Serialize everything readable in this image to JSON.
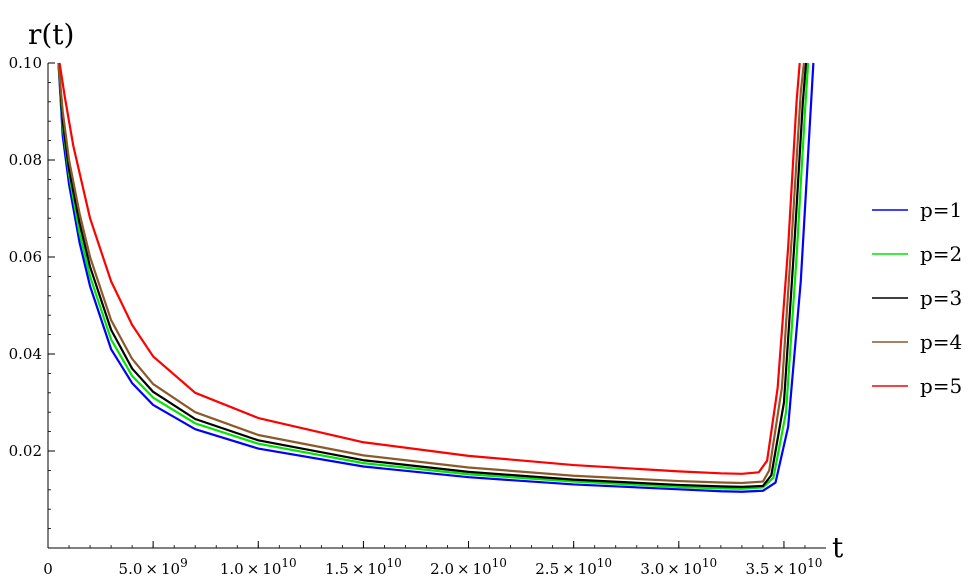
{
  "chart_data": {
    "type": "line",
    "title": "",
    "xlabel": "t",
    "ylabel": "r(t)",
    "xlim": [
      0,
      37000000000
    ],
    "ylim": [
      0,
      0.1
    ],
    "grid": false,
    "legend_position": "right",
    "x_ticks": [
      {
        "value": 0,
        "mantissa": "0",
        "exp": ""
      },
      {
        "value": 5000000000,
        "mantissa": "5.0 × 10",
        "exp": "9"
      },
      {
        "value": 10000000000,
        "mantissa": "1.0 × 10",
        "exp": "10"
      },
      {
        "value": 15000000000,
        "mantissa": "1.5 × 10",
        "exp": "10"
      },
      {
        "value": 20000000000,
        "mantissa": "2.0 × 10",
        "exp": "10"
      },
      {
        "value": 25000000000,
        "mantissa": "2.5 × 10",
        "exp": "10"
      },
      {
        "value": 30000000000,
        "mantissa": "3.0 × 10",
        "exp": "10"
      },
      {
        "value": 35000000000,
        "mantissa": "3.5 × 10",
        "exp": "10"
      }
    ],
    "y_ticks": [
      {
        "value": 0.02,
        "label": "0.02"
      },
      {
        "value": 0.04,
        "label": "0.04"
      },
      {
        "value": 0.06,
        "label": "0.06"
      },
      {
        "value": 0.08,
        "label": "0.08"
      },
      {
        "value": 0.1,
        "label": "0.10"
      }
    ],
    "series": [
      {
        "name": "p=1",
        "color": "#0000ff",
        "points": [
          [
            500000000,
            0.1
          ],
          [
            700000000,
            0.085
          ],
          [
            1000000000,
            0.075
          ],
          [
            1500000000,
            0.063
          ],
          [
            2000000000,
            0.054
          ],
          [
            3000000000,
            0.041
          ],
          [
            4000000000,
            0.034
          ],
          [
            5000000000,
            0.0295
          ],
          [
            7000000000,
            0.0245
          ],
          [
            10000000000,
            0.0205
          ],
          [
            15000000000,
            0.0168
          ],
          [
            20000000000,
            0.0146
          ],
          [
            25000000000,
            0.0131
          ],
          [
            30000000000,
            0.0121
          ],
          [
            32000000000,
            0.0117
          ],
          [
            33000000000,
            0.0116
          ],
          [
            34000000000,
            0.0118
          ],
          [
            34600000000,
            0.0135
          ],
          [
            35200000000,
            0.025
          ],
          [
            35800000000,
            0.055
          ],
          [
            36200000000,
            0.085
          ],
          [
            36400000000,
            0.1
          ]
        ]
      },
      {
        "name": "p=2",
        "color": "#00e600",
        "points": [
          [
            500000000,
            0.1
          ],
          [
            700000000,
            0.087
          ],
          [
            1000000000,
            0.077
          ],
          [
            1500000000,
            0.065
          ],
          [
            2000000000,
            0.056
          ],
          [
            3000000000,
            0.043
          ],
          [
            4000000000,
            0.0355
          ],
          [
            5000000000,
            0.031
          ],
          [
            7000000000,
            0.0257
          ],
          [
            10000000000,
            0.0215
          ],
          [
            15000000000,
            0.0175
          ],
          [
            20000000000,
            0.0152
          ],
          [
            25000000000,
            0.0137
          ],
          [
            30000000000,
            0.0126
          ],
          [
            32000000000,
            0.0123
          ],
          [
            33000000000,
            0.0122
          ],
          [
            34000000000,
            0.0125
          ],
          [
            34500000000,
            0.0145
          ],
          [
            35100000000,
            0.028
          ],
          [
            35600000000,
            0.06
          ],
          [
            36000000000,
            0.09
          ],
          [
            36150000000,
            0.1
          ]
        ]
      },
      {
        "name": "p=3",
        "color": "#000000",
        "points": [
          [
            500000000,
            0.1
          ],
          [
            700000000,
            0.088
          ],
          [
            1000000000,
            0.078
          ],
          [
            1500000000,
            0.067
          ],
          [
            2000000000,
            0.058
          ],
          [
            3000000000,
            0.045
          ],
          [
            4000000000,
            0.037
          ],
          [
            5000000000,
            0.0322
          ],
          [
            7000000000,
            0.0266
          ],
          [
            10000000000,
            0.0222
          ],
          [
            15000000000,
            0.0181
          ],
          [
            20000000000,
            0.0157
          ],
          [
            25000000000,
            0.0141
          ],
          [
            30000000000,
            0.013
          ],
          [
            32000000000,
            0.0127
          ],
          [
            33000000000,
            0.0126
          ],
          [
            34000000000,
            0.0128
          ],
          [
            34400000000,
            0.015
          ],
          [
            35000000000,
            0.03
          ],
          [
            35500000000,
            0.063
          ],
          [
            35900000000,
            0.092
          ],
          [
            36050000000,
            0.1
          ]
        ]
      },
      {
        "name": "p=4",
        "color": "#8b5a2b",
        "points": [
          [
            500000000,
            0.1
          ],
          [
            700000000,
            0.09
          ],
          [
            1000000000,
            0.08
          ],
          [
            1500000000,
            0.069
          ],
          [
            2000000000,
            0.06
          ],
          [
            3000000000,
            0.047
          ],
          [
            4000000000,
            0.039
          ],
          [
            5000000000,
            0.0338
          ],
          [
            7000000000,
            0.028
          ],
          [
            10000000000,
            0.0233
          ],
          [
            15000000000,
            0.0191
          ],
          [
            20000000000,
            0.0166
          ],
          [
            25000000000,
            0.0149
          ],
          [
            30000000000,
            0.0138
          ],
          [
            32000000000,
            0.0135
          ],
          [
            33000000000,
            0.0134
          ],
          [
            34000000000,
            0.0137
          ],
          [
            34300000000,
            0.016
          ],
          [
            34900000000,
            0.033
          ],
          [
            35400000000,
            0.066
          ],
          [
            35800000000,
            0.094
          ],
          [
            35950000000,
            0.1
          ]
        ]
      },
      {
        "name": "p=5",
        "color": "#ff0000",
        "points": [
          [
            550000000,
            0.1
          ],
          [
            800000000,
            0.093
          ],
          [
            1200000000,
            0.083
          ],
          [
            2000000000,
            0.068
          ],
          [
            3000000000,
            0.055
          ],
          [
            4000000000,
            0.046
          ],
          [
            5000000000,
            0.0395
          ],
          [
            7000000000,
            0.032
          ],
          [
            10000000000,
            0.0268
          ],
          [
            15000000000,
            0.0218
          ],
          [
            20000000000,
            0.019
          ],
          [
            25000000000,
            0.0171
          ],
          [
            30000000000,
            0.0158
          ],
          [
            32000000000,
            0.0154
          ],
          [
            33000000000,
            0.0153
          ],
          [
            33800000000,
            0.0156
          ],
          [
            34200000000,
            0.018
          ],
          [
            34700000000,
            0.033
          ],
          [
            35200000000,
            0.062
          ],
          [
            35600000000,
            0.092
          ],
          [
            35750000000,
            0.1
          ]
        ]
      }
    ]
  }
}
